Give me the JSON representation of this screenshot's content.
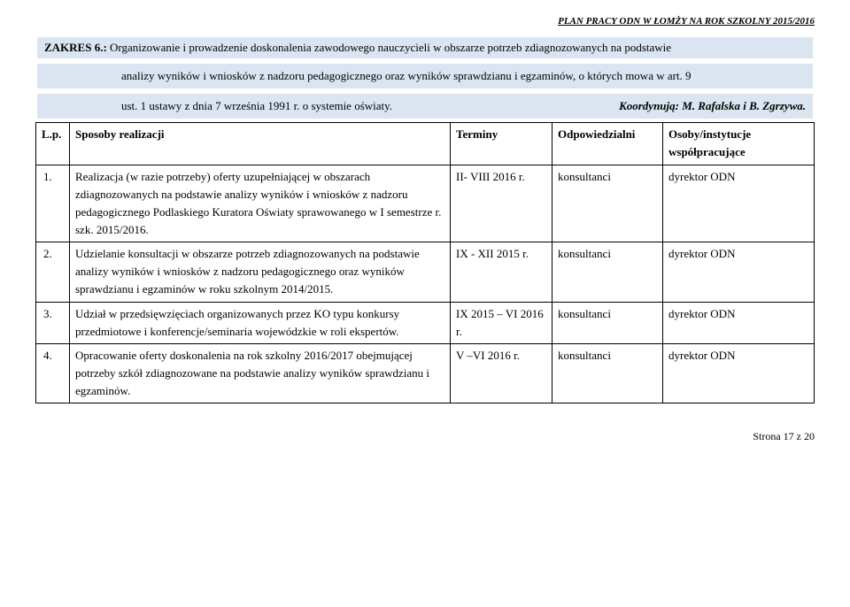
{
  "header_right": "PLAN PRACY ODN W ŁOMŻY NA ROK SZKOLNY 2015/2016",
  "zakres": {
    "label": "ZAKRES 6.:",
    "text": " Organizowanie i prowadzenie doskonalenia zawodowego nauczycieli w obszarze potrzeb zdiagnozowanych na podstawie",
    "line2": "analizy wyników i wniosków z nadzoru pedagogicznego oraz wyników sprawdzianu i egzaminów, o których mowa w art. 9",
    "line3a": "ust. 1 ustawy z dnia 7 września 1991 r. o systemie oświaty.",
    "koordynuja": "Koordynują: M. Rafalska i B. Zgrzywa."
  },
  "columns": {
    "lp": "L.p.",
    "sposoby": "Sposoby realizacji",
    "terminy": "Terminy",
    "odpowiedzialni": "Odpowiedzialni",
    "osoby": "Osoby/instytucje współpracujące"
  },
  "rows": [
    {
      "num": "1.",
      "sposoby": "Realizacja (w razie potrzeby) oferty uzupełniającej w obszarach zdiagnozowanych na podstawie analizy wyników i wniosków z nadzoru pedagogicznego Podlaskiego Kuratora Oświaty sprawowanego w I semestrze r. szk. 2015/2016.",
      "terminy": "II- VIII 2016 r.",
      "odpowiedzialni": "konsultanci",
      "osoby": "dyrektor ODN"
    },
    {
      "num": "2.",
      "sposoby": "Udzielanie konsultacji w obszarze potrzeb zdiagnozowanych na podstawie analizy wyników i wniosków z nadzoru pedagogicznego oraz wyników sprawdzianu i egzaminów w roku szkolnym 2014/2015.",
      "terminy": "IX - XII 2015 r.",
      "odpowiedzialni": "konsultanci",
      "osoby": "dyrektor ODN"
    },
    {
      "num": "3.",
      "sposoby": "Udział w przedsięwzięciach organizowanych przez KO typu konkursy przedmiotowe i konferencje/seminaria wojewódzkie w roli ekspertów.",
      "terminy": "IX 2015 – VI 2016 r.",
      "odpowiedzialni": "konsultanci",
      "osoby": "dyrektor ODN"
    },
    {
      "num": "4.",
      "sposoby": "Opracowanie oferty doskonalenia na rok szkolny 2016/2017 obejmującej potrzeby szkół zdiagnozowane na podstawie analizy wyników sprawdzianu i egzaminów.",
      "terminy": "V –VI 2016 r.",
      "odpowiedzialni": "konsultanci",
      "osoby": "dyrektor ODN"
    }
  ],
  "footer": "Strona 17 z 20",
  "colors": {
    "highlight_bg": "#dbe5f1",
    "border": "#000000",
    "page_bg": "#ffffff"
  }
}
